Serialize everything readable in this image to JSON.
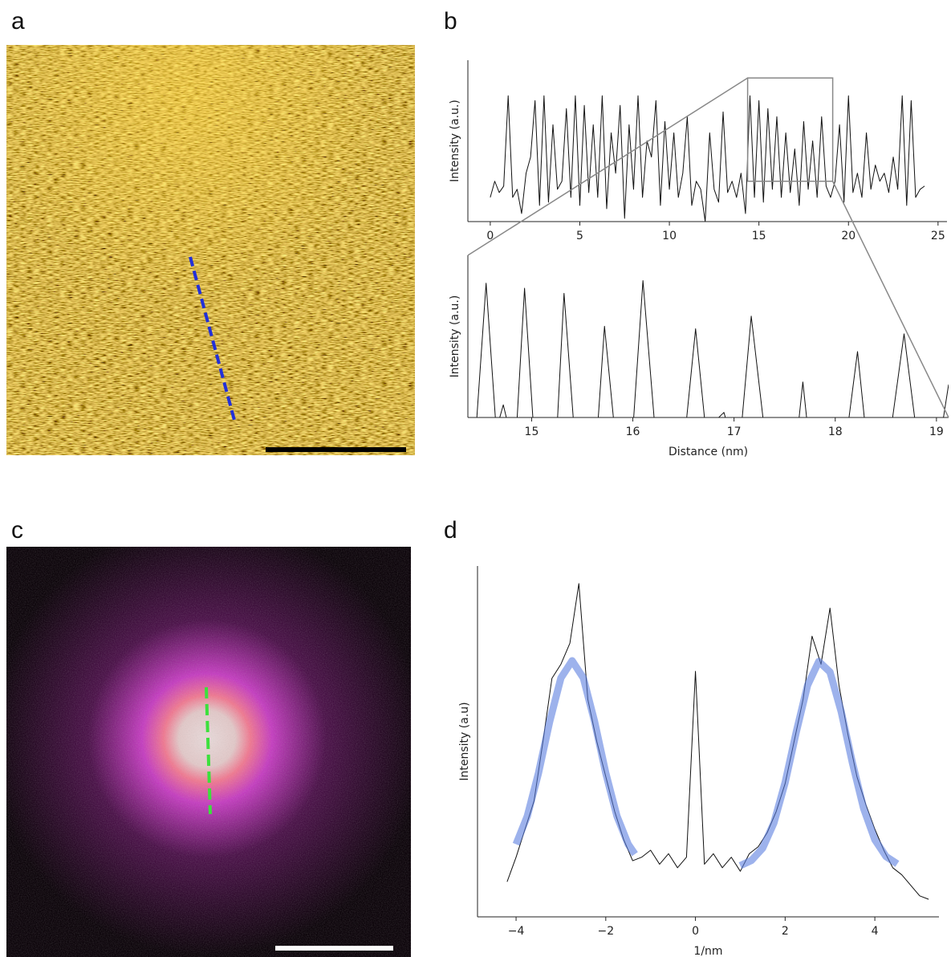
{
  "panel_labels": [
    "a",
    "b",
    "c",
    "d"
  ],
  "chart_data": [
    {
      "type": "line",
      "ylabel": "Intensity (a.u.)",
      "xlim": [
        -1.25,
        25.5
      ],
      "ylim": [
        0,
        1
      ],
      "xticks": [
        0,
        5,
        10,
        15,
        20,
        25
      ],
      "series": [
        {
          "color": "#111111",
          "linewidth": 1,
          "x": [
            0,
            0.25,
            0.5,
            0.75,
            1,
            1.25,
            1.5,
            1.75,
            2,
            2.25,
            2.5,
            2.75,
            3,
            3.25,
            3.5,
            3.75,
            4,
            4.25,
            4.5,
            4.75,
            5,
            5.25,
            5.5,
            5.75,
            6,
            6.25,
            6.5,
            6.75,
            7,
            7.25,
            7.5,
            7.75,
            8,
            8.25,
            8.5,
            8.75,
            9,
            9.25,
            9.5,
            9.75,
            10,
            10.25,
            10.5,
            10.75,
            11,
            11.25,
            11.5,
            11.75,
            12,
            12.25,
            12.5,
            12.75,
            13,
            13.25,
            13.5,
            13.75,
            14,
            14.25,
            14.5,
            14.75,
            15,
            15.25,
            15.5,
            15.75,
            16,
            16.25,
            16.5,
            16.75,
            17,
            17.25,
            17.5,
            17.75,
            18,
            18.25,
            18.5,
            18.75,
            19,
            19.25,
            19.5,
            19.75,
            20,
            20.25,
            20.5,
            20.75,
            21,
            21.25,
            21.5,
            21.75,
            22,
            22.25,
            22.5,
            22.75,
            23,
            23.25,
            23.5,
            23.75,
            24,
            24.25
          ],
          "values": [
            0.15,
            0.25,
            0.18,
            0.22,
            0.78,
            0.15,
            0.2,
            0.05,
            0.3,
            0.4,
            0.75,
            0.1,
            0.78,
            0.12,
            0.6,
            0.2,
            0.25,
            0.7,
            0.15,
            0.78,
            0.1,
            0.72,
            0.18,
            0.6,
            0.15,
            0.78,
            0.08,
            0.55,
            0.3,
            0.72,
            0.02,
            0.6,
            0.2,
            0.78,
            0.15,
            0.5,
            0.4,
            0.75,
            0.1,
            0.62,
            0.2,
            0.55,
            0.15,
            0.3,
            0.65,
            0.1,
            0.25,
            0.2,
            0.0,
            0.55,
            0.2,
            0.12,
            0.68,
            0.18,
            0.25,
            0.15,
            0.3,
            0.05,
            0.78,
            0.15,
            0.75,
            0.12,
            0.7,
            0.2,
            0.65,
            0.15,
            0.55,
            0.18,
            0.45,
            0.1,
            0.62,
            0.2,
            0.5,
            0.15,
            0.65,
            0.22,
            0.15,
            0.25,
            0.6,
            0.12,
            0.78,
            0.18,
            0.3,
            0.15,
            0.55,
            0.2,
            0.35,
            0.25,
            0.3,
            0.18,
            0.4,
            0.2,
            0.78,
            0.1,
            0.75,
            0.15,
            0.2,
            0.22
          ]
        }
      ]
    },
    {
      "type": "line",
      "ylabel": "Intensity (a.u.)",
      "xlabel": "Distance (nm)",
      "xlim": [
        14.37,
        19.12
      ],
      "ylim": [
        0.25,
        0.89
      ],
      "xticks": [
        15,
        16,
        17,
        18,
        19
      ],
      "series": [
        {
          "color": "#111111",
          "linewidth": 1,
          "x": [
            14.45,
            14.55,
            14.65,
            14.72,
            14.78,
            14.85,
            14.93,
            15.02,
            15.25,
            15.32,
            15.42,
            15.65,
            15.72,
            15.82,
            16.0,
            16.1,
            16.22,
            16.52,
            16.62,
            16.72,
            16.9,
            16.95,
            17.07,
            17.17,
            17.3,
            17.63,
            17.68,
            17.73,
            18.12,
            18.22,
            18.3,
            18.55,
            18.68,
            18.8,
            19.05,
            19.12
          ],
          "values": [
            0.2,
            0.78,
            0.2,
            0.3,
            0.2,
            0.2,
            0.76,
            0.2,
            0.2,
            0.74,
            0.2,
            0.2,
            0.61,
            0.2,
            0.2,
            0.79,
            0.2,
            0.2,
            0.6,
            0.2,
            0.27,
            0.2,
            0.2,
            0.65,
            0.2,
            0.2,
            0.39,
            0.2,
            0.2,
            0.51,
            0.2,
            0.2,
            0.58,
            0.2,
            0.2,
            0.38
          ]
        }
      ]
    },
    {
      "type": "line",
      "ylabel": "Intensity (a.u)",
      "xlabel": "1/nm",
      "xlim": [
        -4.86,
        5.43
      ],
      "ylim": [
        0,
        1
      ],
      "xticks": [
        {
          "value": -4,
          "label": "−4"
        },
        {
          "value": -2,
          "label": "−2"
        },
        0,
        2,
        4
      ],
      "series": [
        {
          "color": "#111111",
          "linewidth": 1,
          "x": [
            -4.2,
            -4.0,
            -3.8,
            -3.6,
            -3.4,
            -3.2,
            -3.0,
            -2.8,
            -2.6,
            -2.4,
            -2.2,
            -2.0,
            -1.8,
            -1.6,
            -1.4,
            -1.2,
            -1.0,
            -0.8,
            -0.6,
            -0.4,
            -0.2,
            0.0,
            0.2,
            0.4,
            0.6,
            0.8,
            1.0,
            1.2,
            1.4,
            1.6,
            1.8,
            2.0,
            2.2,
            2.4,
            2.6,
            2.8,
            3.0,
            3.2,
            3.4,
            3.6,
            3.8,
            4.0,
            4.2,
            4.4,
            4.6,
            4.8,
            5.0,
            5.2
          ],
          "values": [
            0.1,
            0.17,
            0.25,
            0.33,
            0.5,
            0.68,
            0.72,
            0.78,
            0.95,
            0.62,
            0.5,
            0.4,
            0.3,
            0.22,
            0.16,
            0.17,
            0.19,
            0.15,
            0.18,
            0.14,
            0.17,
            0.7,
            0.15,
            0.18,
            0.14,
            0.17,
            0.13,
            0.18,
            0.2,
            0.24,
            0.3,
            0.38,
            0.5,
            0.62,
            0.8,
            0.72,
            0.88,
            0.66,
            0.52,
            0.4,
            0.32,
            0.25,
            0.19,
            0.14,
            0.12,
            0.09,
            0.06,
            0.05
          ]
        },
        {
          "color": "#5b7fe0",
          "linewidth": 9,
          "x": [
            -4.0,
            -3.75,
            -3.5,
            -3.25,
            -3.0,
            -2.75,
            -2.5,
            -2.25,
            -2.0,
            -1.75,
            -1.5,
            -1.35
          ],
          "values": [
            0.207,
            0.287,
            0.41,
            0.557,
            0.681,
            0.73,
            0.681,
            0.557,
            0.41,
            0.287,
            0.207,
            0.179
          ]
        },
        {
          "color": "#5b7fe0",
          "linewidth": 9,
          "x": [
            1.0,
            1.25,
            1.5,
            1.75,
            2.0,
            2.25,
            2.5,
            2.75,
            3.0,
            3.25,
            3.5,
            3.75,
            4.0,
            4.25,
            4.5
          ],
          "values": [
            0.146,
            0.161,
            0.196,
            0.268,
            0.383,
            0.528,
            0.66,
            0.728,
            0.698,
            0.585,
            0.439,
            0.309,
            0.22,
            0.172,
            0.151
          ]
        }
      ]
    }
  ]
}
